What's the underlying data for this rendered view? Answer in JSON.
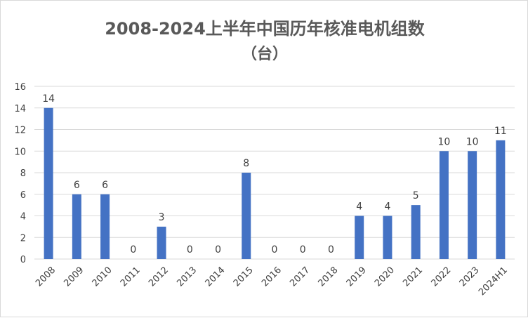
{
  "chart_data": {
    "type": "bar",
    "title": "2008-2024上半年中国历年核准电机组数",
    "subtitle": "（台）",
    "categories": [
      "2008",
      "2009",
      "2010",
      "2011",
      "2012",
      "2013",
      "2014",
      "2015",
      "2016",
      "2017",
      "2018",
      "2019",
      "2020",
      "2021",
      "2022",
      "2023",
      "2024H1"
    ],
    "values": [
      14,
      6,
      6,
      0,
      3,
      0,
      0,
      8,
      0,
      0,
      0,
      4,
      4,
      5,
      10,
      10,
      11
    ],
    "ylim": [
      0,
      16
    ],
    "yticks": [
      "0",
      "2",
      "4",
      "6",
      "8",
      "10",
      "12",
      "14",
      "16"
    ],
    "grid": true,
    "data_labels": true,
    "bar_color": "#4472c4",
    "grid_color": "#d9d9d9",
    "legend": "none"
  }
}
